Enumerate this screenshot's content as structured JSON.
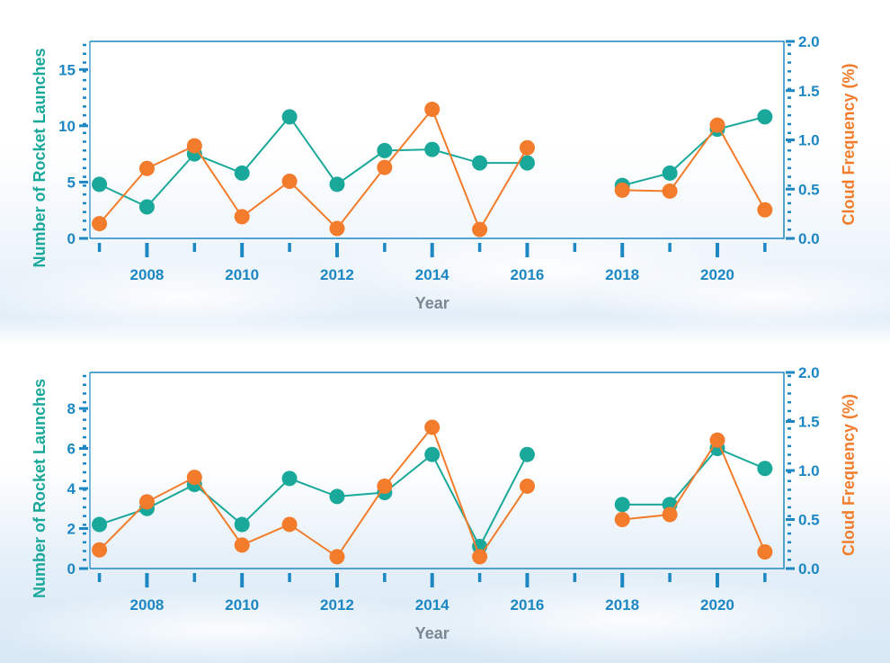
{
  "colors": {
    "launches": "#1aa89a",
    "cloud": "#f27c2b",
    "axis": "#1d87c4",
    "axis_label_left": "#1aa89a",
    "axis_label_right": "#f27c2b",
    "xlabel": "#7b8793"
  },
  "chart_data": [
    {
      "type": "line",
      "title": "",
      "xlabel": "Year",
      "ylabel": "Number of Rocket Launches",
      "y2label": "Cloud Frequency (%)",
      "xlim": [
        2006.8,
        2021.4
      ],
      "ylim": [
        0,
        17.5
      ],
      "y2lim": [
        0,
        2.0
      ],
      "xticks": [
        2008,
        2010,
        2012,
        2014,
        2016,
        2018,
        2020
      ],
      "xtick_labels": [
        "2008",
        "2010",
        "2012",
        "2014",
        "2016",
        "2018",
        "2020"
      ],
      "yticks": [
        0,
        5,
        10,
        15
      ],
      "ytick_labels": [
        "0",
        "5",
        "10",
        "15"
      ],
      "y2ticks": [
        0,
        0.5,
        1.0,
        1.5,
        2.0
      ],
      "y2tick_labels": [
        "0.0",
        "0.5",
        "1.0",
        "1.5",
        "2.0"
      ],
      "legend": "none",
      "grid": false,
      "series": [
        {
          "axis": "left",
          "x": [
            2007,
            2008,
            2009,
            2010,
            2011,
            2012,
            2013,
            2014,
            2015,
            2016,
            null,
            2018,
            2019,
            2020,
            2021
          ],
          "values": [
            4.8,
            2.8,
            7.5,
            5.8,
            10.8,
            4.8,
            7.8,
            7.9,
            6.7,
            6.7,
            null,
            4.7,
            5.8,
            9.7,
            10.8
          ]
        },
        {
          "axis": "right",
          "x": [
            2007,
            2008,
            2009,
            2010,
            2011,
            2012,
            2013,
            2014,
            2015,
            2016,
            null,
            2018,
            2019,
            2020,
            2021
          ],
          "values": [
            0.15,
            0.71,
            0.94,
            0.22,
            0.58,
            0.1,
            0.72,
            1.31,
            0.09,
            0.92,
            null,
            0.49,
            0.48,
            1.15,
            0.29
          ]
        }
      ]
    },
    {
      "type": "line",
      "title": "",
      "xlabel": "Year",
      "ylabel": "Number of Rocket Launches",
      "y2label": "Cloud Frequency (%)",
      "xlim": [
        2006.8,
        2021.4
      ],
      "ylim": [
        0,
        9.8
      ],
      "y2lim": [
        0,
        2.0
      ],
      "xticks": [
        2008,
        2010,
        2012,
        2014,
        2016,
        2018,
        2020
      ],
      "xtick_labels": [
        "2008",
        "2010",
        "2012",
        "2014",
        "2016",
        "2018",
        "2020"
      ],
      "yticks": [
        0,
        2,
        4,
        6,
        8
      ],
      "ytick_labels": [
        "0",
        "2",
        "4",
        "6",
        "8"
      ],
      "y2ticks": [
        0,
        0.5,
        1.0,
        1.5,
        2.0
      ],
      "y2tick_labels": [
        "0.0",
        "0.5",
        "1.0",
        "1.5",
        "2.0"
      ],
      "legend": "none",
      "grid": false,
      "series": [
        {
          "axis": "left",
          "x": [
            2007,
            2008,
            2009,
            2010,
            2011,
            2012,
            2013,
            2014,
            2015,
            2016,
            null,
            2018,
            2019,
            2020,
            2021
          ],
          "values": [
            2.2,
            3.0,
            4.2,
            2.2,
            4.5,
            3.6,
            3.8,
            5.7,
            1.1,
            5.7,
            null,
            3.2,
            3.2,
            6.0,
            5.0
          ]
        },
        {
          "axis": "right",
          "x": [
            2007,
            2008,
            2009,
            2010,
            2011,
            2012,
            2013,
            2014,
            2015,
            2016,
            null,
            2018,
            2019,
            2020,
            2021
          ],
          "values": [
            0.19,
            0.68,
            0.93,
            0.24,
            0.45,
            0.12,
            0.84,
            1.44,
            0.12,
            0.84,
            null,
            0.5,
            0.55,
            1.31,
            0.17
          ]
        }
      ]
    }
  ]
}
